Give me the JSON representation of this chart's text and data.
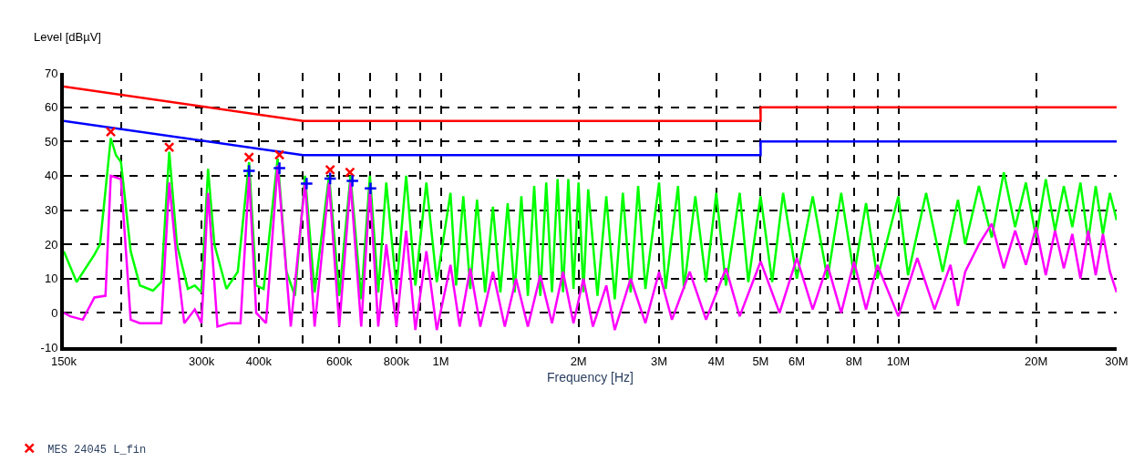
{
  "chart_data": {
    "type": "line",
    "xlabel": "Frequency [Hz]",
    "ylabel": "Level [dBµV]",
    "log": "x",
    "grid": true,
    "legend": "bottom left",
    "xlim": [
      150000,
      30000000
    ],
    "ylim": [
      -10,
      70
    ],
    "xticks": [
      {
        "value": 150000,
        "label": "150k"
      },
      {
        "value": 200000,
        "label": null
      },
      {
        "value": 300000,
        "label": "300k"
      },
      {
        "value": 400000,
        "label": "400k"
      },
      {
        "value": 500000,
        "label": null
      },
      {
        "value": 600000,
        "label": "600k"
      },
      {
        "value": 700000,
        "label": null
      },
      {
        "value": 800000,
        "label": "800k"
      },
      {
        "value": 900000,
        "label": null
      },
      {
        "value": 1000000,
        "label": "1M"
      },
      {
        "value": 2000000,
        "label": "2M"
      },
      {
        "value": 3000000,
        "label": "3M"
      },
      {
        "value": 4000000,
        "label": "4M"
      },
      {
        "value": 5000000,
        "label": "5M"
      },
      {
        "value": 6000000,
        "label": "6M"
      },
      {
        "value": 7000000,
        "label": null
      },
      {
        "value": 8000000,
        "label": "8M"
      },
      {
        "value": 9000000,
        "label": null
      },
      {
        "value": 10000000,
        "label": "10M"
      },
      {
        "value": 20000000,
        "label": "20M"
      },
      {
        "value": 30000000,
        "label": "30M"
      }
    ],
    "yticks": [
      -10,
      0,
      10,
      20,
      30,
      40,
      50,
      60,
      70
    ],
    "series": [
      {
        "color": "#00ff00",
        "x": [
          150000,
          160000,
          175000,
          180000,
          190000,
          195000,
          200000,
          210000,
          220000,
          235000,
          245000,
          255000,
          265000,
          280000,
          290000,
          300000,
          310000,
          320000,
          340000,
          360000,
          381000,
          395000,
          410000,
          440000,
          460000,
          480000,
          505000,
          530000,
          570000,
          600000,
          635000,
          670000,
          700000,
          730000,
          760000,
          800000,
          840000,
          880000,
          930000,
          980000,
          1050000,
          1080000,
          1120000,
          1160000,
          1200000,
          1250000,
          1300000,
          1350000,
          1400000,
          1450000,
          1500000,
          1550000,
          1600000,
          1650000,
          1700000,
          1750000,
          1800000,
          1850000,
          1900000,
          1950000,
          2000000,
          2050000,
          2100000,
          2200000,
          2300000,
          2400000,
          2500000,
          2600000,
          2700000,
          2800000,
          3000000,
          3100000,
          3300000,
          3400000,
          3600000,
          3800000,
          4000000,
          4200000,
          4500000,
          4700000,
          5000000,
          5300000,
          5600000,
          6000000,
          6500000,
          7000000,
          7500000,
          8000000,
          8500000,
          9000000,
          10000000,
          10500000,
          11500000,
          12500000,
          13500000,
          14000000,
          15000000,
          16000000,
          17000000,
          18000000,
          19000000,
          20000000,
          21000000,
          22000000,
          23000000,
          24000000,
          25000000,
          26000000,
          27000000,
          28000000,
          29000000,
          30000000
        ],
        "values": [
          18,
          9,
          17,
          20,
          51,
          46,
          44,
          18,
          8,
          6.5,
          9,
          47,
          20,
          7,
          8,
          6,
          42,
          20,
          7,
          12,
          44,
          8,
          7,
          45,
          12,
          5,
          40,
          6,
          40,
          5,
          40,
          4,
          40,
          6,
          38,
          7,
          40,
          8,
          38,
          9,
          35,
          8,
          34,
          7,
          33,
          6,
          31,
          6,
          32,
          6,
          34,
          5,
          37,
          5,
          38,
          6,
          39,
          6,
          39,
          7,
          38,
          6,
          36,
          5,
          34,
          4,
          35,
          6,
          37,
          7,
          38,
          7,
          37,
          7,
          34,
          9,
          35,
          8,
          35,
          9,
          34,
          9,
          35,
          10,
          34,
          10,
          35,
          11,
          32,
          10,
          34,
          11,
          35,
          12,
          33,
          20,
          37,
          22,
          41,
          25,
          38,
          22,
          39,
          24,
          37,
          25,
          38,
          21,
          37,
          23,
          35,
          27
        ]
      },
      {
        "color": "#ff00ff",
        "x": [
          150000,
          155000,
          165000,
          175000,
          185000,
          190000,
          200000,
          210000,
          220000,
          245000,
          255000,
          265000,
          275000,
          290000,
          300000,
          310000,
          325000,
          345000,
          365000,
          381000,
          395000,
          415000,
          440000,
          470000,
          505000,
          530000,
          570000,
          600000,
          635000,
          670000,
          700000,
          730000,
          760000,
          800000,
          840000,
          880000,
          930000,
          980000,
          1050000,
          1100000,
          1160000,
          1220000,
          1300000,
          1380000,
          1460000,
          1550000,
          1650000,
          1750000,
          1850000,
          1950000,
          2050000,
          2150000,
          2300000,
          2400000,
          2600000,
          2800000,
          3000000,
          3200000,
          3500000,
          3800000,
          4200000,
          4500000,
          5000000,
          5500000,
          6000000,
          6500000,
          7000000,
          7500000,
          8000000,
          8500000,
          9000000,
          10000000,
          11000000,
          12000000,
          13000000,
          13500000,
          14000000,
          15000000,
          16000000,
          17000000,
          18000000,
          19000000,
          20000000,
          21000000,
          22000000,
          23000000,
          24000000,
          25000000,
          26000000,
          27000000,
          28000000,
          29000000,
          30000000
        ],
        "values": [
          0,
          -1,
          -2,
          4.5,
          5,
          40,
          39,
          -2,
          -3,
          -3,
          38,
          15,
          -3,
          1,
          -3,
          35,
          -4,
          -3,
          -3,
          40,
          0,
          -3,
          43,
          -4,
          38,
          -4,
          38,
          -4,
          38,
          -4,
          36,
          -4,
          20,
          -4,
          24,
          -5,
          18,
          -5,
          14,
          -4,
          13,
          -4,
          12,
          -4,
          10,
          -4,
          11,
          -3,
          12,
          -3,
          10,
          -4,
          8,
          -5,
          10,
          -3,
          12,
          -2,
          12,
          -2,
          13,
          -1,
          15,
          0,
          16,
          1,
          14,
          0,
          15,
          1,
          14,
          -1,
          16,
          1,
          14,
          2,
          12,
          20,
          26,
          13,
          24,
          14,
          25,
          11,
          24,
          13,
          23,
          10,
          24,
          11,
          23,
          12,
          6
        ]
      },
      {
        "color": "#ff0000",
        "x": [
          150000,
          500000,
          5000000,
          5000000,
          30000000
        ],
        "values": [
          66,
          56,
          56,
          60,
          60
        ]
      },
      {
        "color": "#0000ff",
        "x": [
          150000,
          500000,
          5000000,
          5000000,
          30000000
        ],
        "values": [
          56,
          46,
          46,
          50,
          50
        ]
      },
      {
        "type": "scatter",
        "marker": "x",
        "name": "MES 24045 L_fin",
        "color": "#ff0000",
        "x": [
          190000,
          255000,
          381000,
          444000,
          573000,
          633000
        ],
        "values": [
          52.8,
          48.3,
          45.4,
          46.1,
          41.7,
          41.0
        ]
      },
      {
        "type": "scatter",
        "marker": "cross",
        "color": "#0000ff",
        "x": [
          381000,
          444000,
          509000,
          573000,
          641000,
          702000
        ],
        "values": [
          41.4,
          42.2,
          37.7,
          39.2,
          38.5,
          36.3
        ]
      }
    ]
  }
}
